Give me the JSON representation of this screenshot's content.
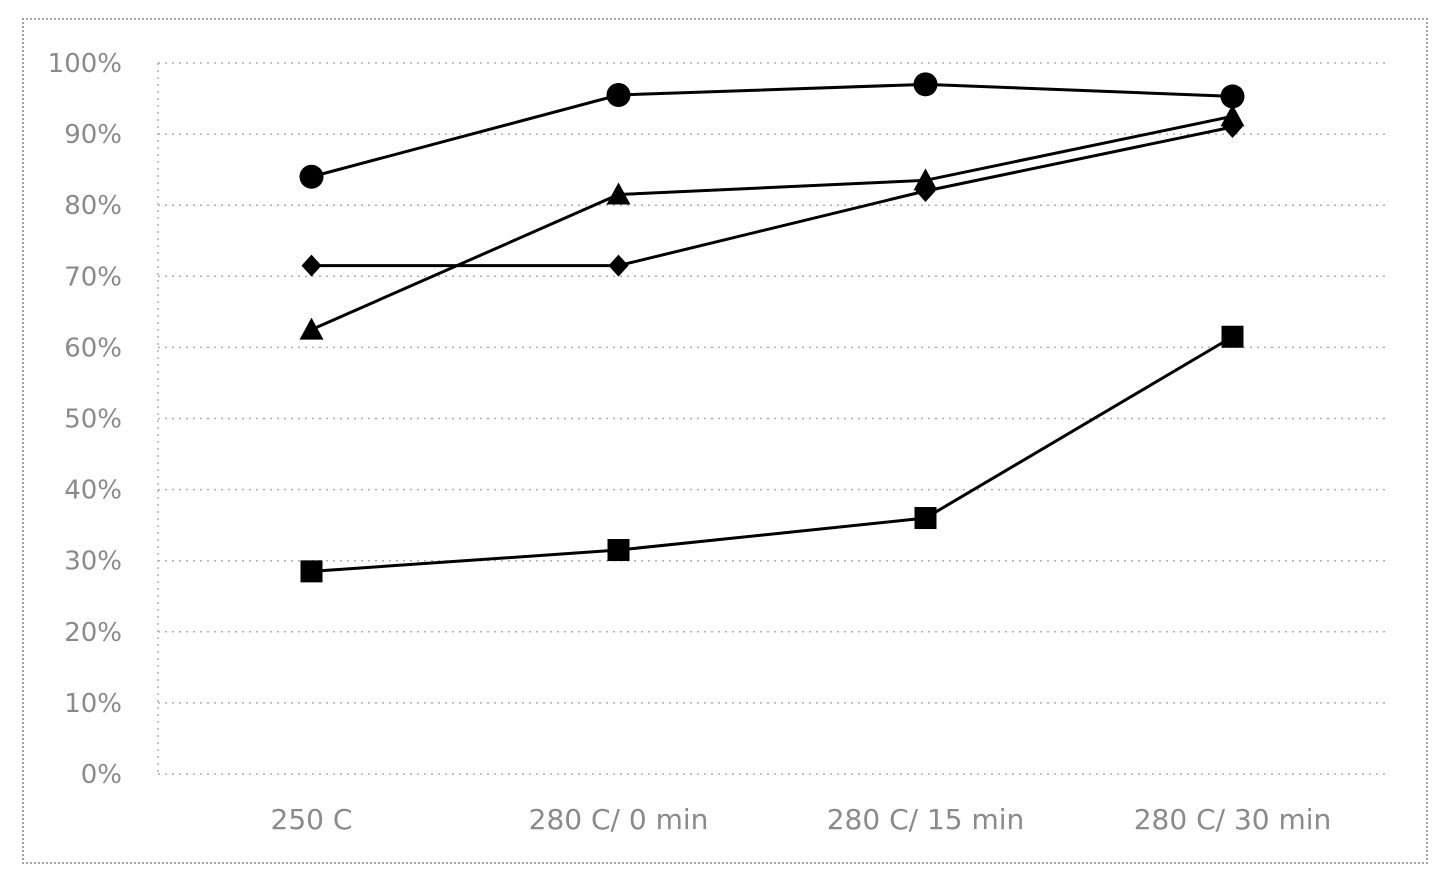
{
  "chart_data": {
    "type": "line",
    "categories": [
      "250 C",
      "280 C/ 0 min",
      "280 C/ 15 min",
      "280 C/ 30 min"
    ],
    "ylim": [
      0,
      100
    ],
    "y_ticks": [
      "0%",
      "10%",
      "20%",
      "30%",
      "40%",
      "50%",
      "60%",
      "70%",
      "80%",
      "90%",
      "100%"
    ],
    "grid": true,
    "legend": "none",
    "series": [
      {
        "marker": "circle",
        "values": [
          84,
          95.5,
          97,
          95.3
        ]
      },
      {
        "marker": "triangle",
        "values": [
          62.5,
          81.5,
          83.5,
          92.5
        ]
      },
      {
        "marker": "diamond",
        "values": [
          71.5,
          71.5,
          82,
          91
        ]
      },
      {
        "marker": "square",
        "values": [
          28.5,
          31.5,
          36,
          61.5
        ]
      }
    ]
  }
}
